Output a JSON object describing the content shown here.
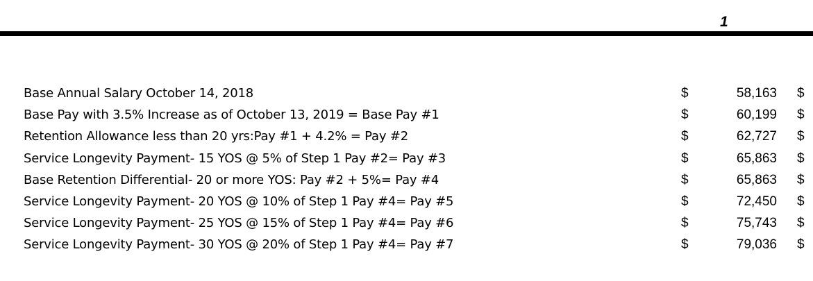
{
  "header": {
    "step_number": "1"
  },
  "rows": [
    {
      "label": "Base Annual Salary October 14, 2018",
      "currency": "$",
      "amount": "58,163",
      "next_currency": "$"
    },
    {
      "label": "Base Pay with 3.5% Increase as of October 13, 2019 = Base Pay #1",
      "currency": "$",
      "amount": "60,199",
      "next_currency": "$"
    },
    {
      "label": "Retention Allowance less than 20 yrs:Pay #1 + 4.2% = Pay #2",
      "currency": "$",
      "amount": "62,727",
      "next_currency": "$"
    },
    {
      "label": "Service Longevity Payment- 15 YOS @ 5% of Step 1 Pay #2= Pay #3",
      "currency": "$",
      "amount": "65,863",
      "next_currency": "$"
    },
    {
      "label": "Base Retention Differential- 20 or more YOS: Pay #2 + 5%= Pay #4",
      "currency": "$",
      "amount": "65,863",
      "next_currency": "$"
    },
    {
      "label": "Service Longevity Payment- 20 YOS @ 10% of Step 1 Pay #4= Pay #5",
      "currency": "$",
      "amount": "72,450",
      "next_currency": "$"
    },
    {
      "label": "Service Longevity Payment- 25 YOS @ 15% of Step 1 Pay #4= Pay #6",
      "currency": "$",
      "amount": "75,743",
      "next_currency": "$"
    },
    {
      "label": "Service Longevity Payment- 30 YOS @ 20% of Step 1 Pay #4= Pay #7",
      "currency": "$",
      "amount": "79,036",
      "next_currency": "$"
    }
  ]
}
